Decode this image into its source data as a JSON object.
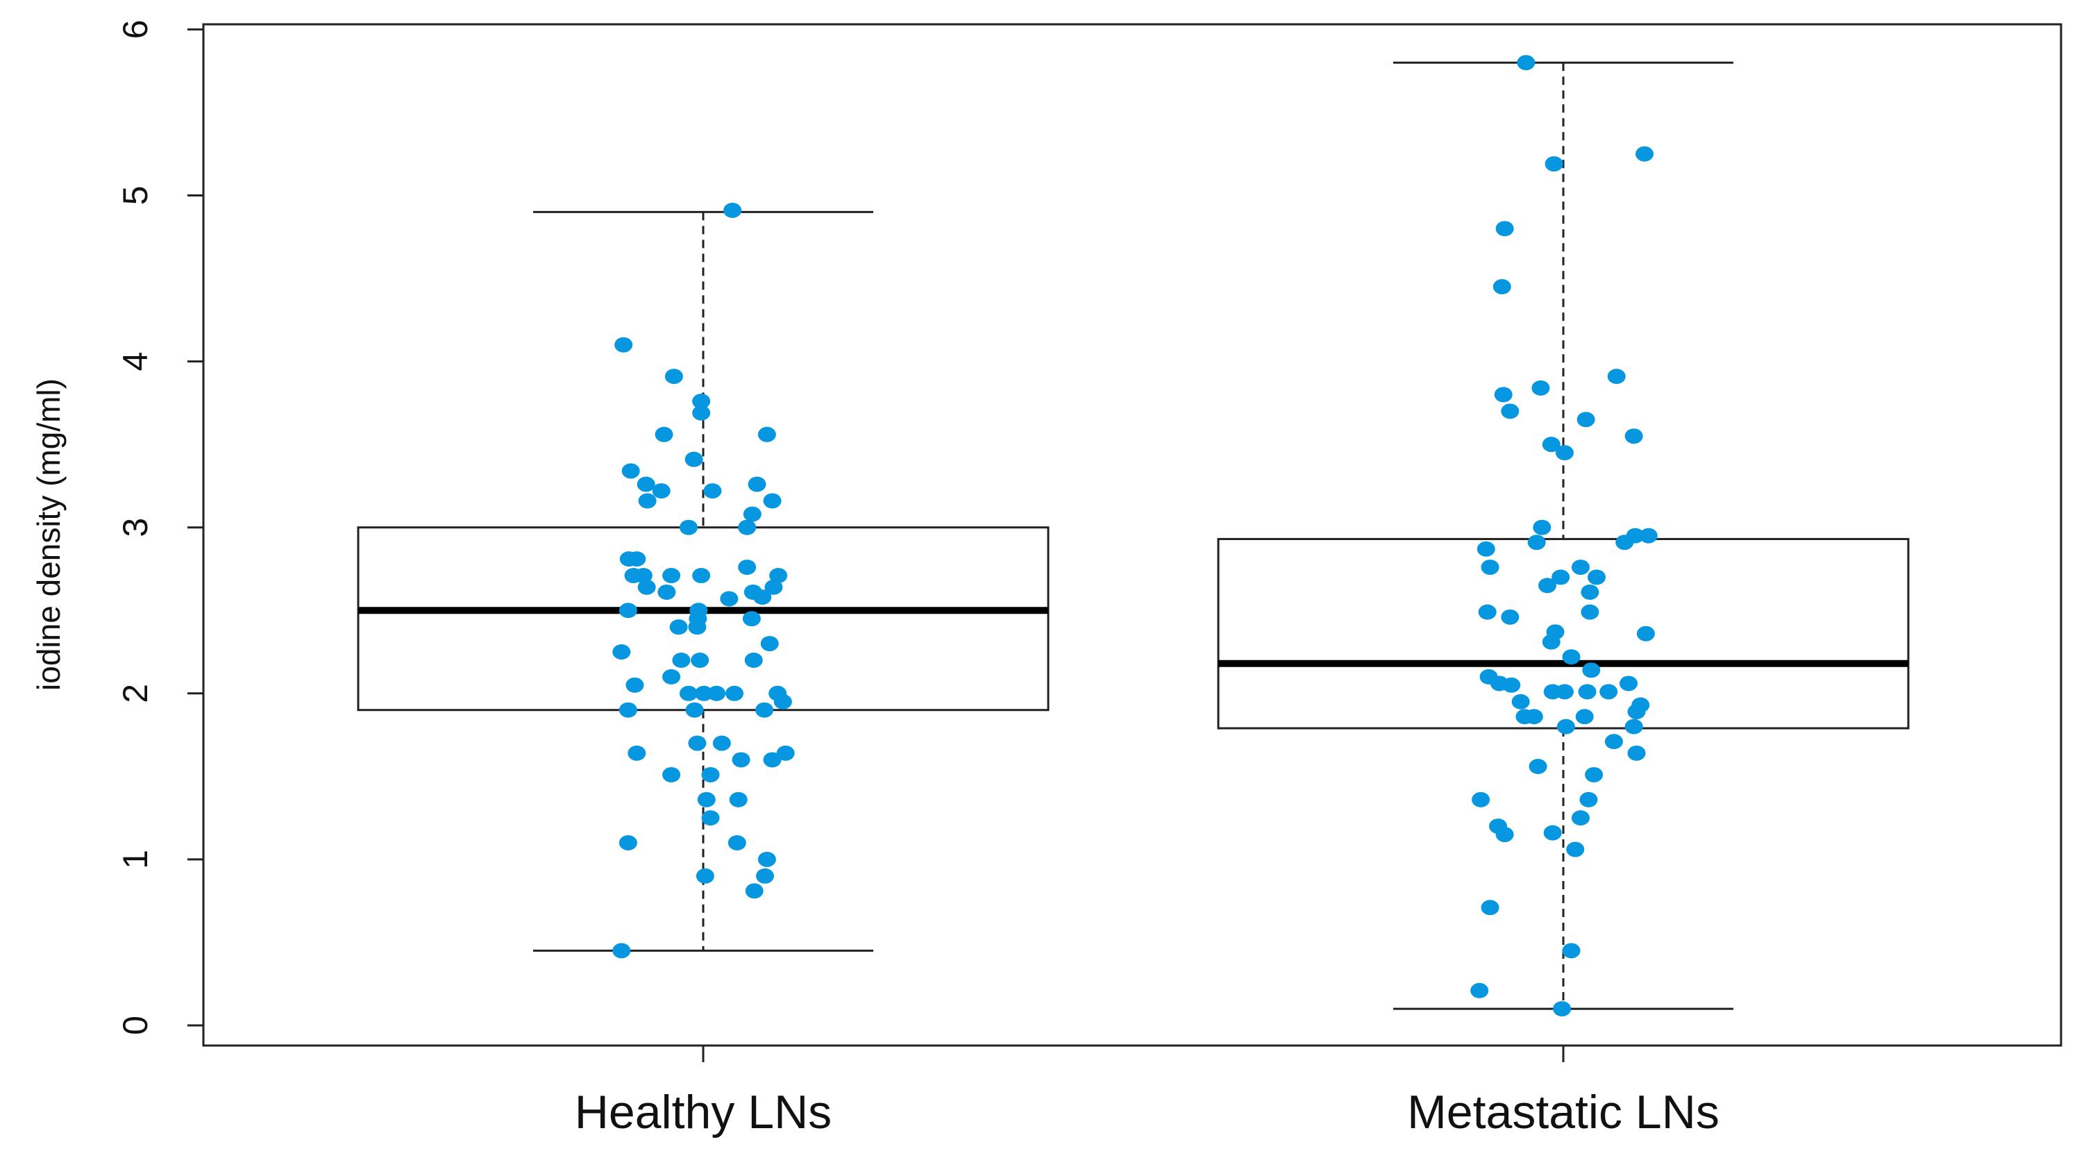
{
  "chart_data": {
    "type": "box",
    "title": "",
    "xlabel": "",
    "ylabel": "iodine density (mg/ml)",
    "ylim": [
      0,
      6
    ],
    "yticks": [
      "0",
      "1",
      "2",
      "3",
      "4",
      "5",
      "6"
    ],
    "grid": false,
    "point_color": "#0797e1",
    "categories": [
      "Healthy LNs",
      "Metastatic LNs"
    ],
    "boxes": [
      {
        "name": "Healthy LNs",
        "whisker_low": 0.45,
        "q1": 1.9,
        "median": 2.5,
        "q3": 3.0,
        "whisker_high": 4.9
      },
      {
        "name": "Metastatic LNs",
        "whisker_low": 0.1,
        "q1": 1.79,
        "median": 2.18,
        "q3": 2.93,
        "whisker_high": 5.8
      }
    ],
    "series": [
      {
        "name": "Healthy LNs",
        "values": [
          4.91,
          4.1,
          3.91,
          3.76,
          3.69,
          3.56,
          3.56,
          3.41,
          3.34,
          3.26,
          3.26,
          3.22,
          3.22,
          3.16,
          3.16,
          3.08,
          3.0,
          3.0,
          2.81,
          2.81,
          2.71,
          2.71,
          2.71,
          2.71,
          2.71,
          2.64,
          2.61,
          2.76,
          2.61,
          2.58,
          2.57,
          2.64,
          2.5,
          2.5,
          2.45,
          2.45,
          2.4,
          2.4,
          2.25,
          2.3,
          2.2,
          2.2,
          2.2,
          2.1,
          2.05,
          2.0,
          2.0,
          2.0,
          2.0,
          2.0,
          1.95,
          1.9,
          1.9,
          1.9,
          1.7,
          1.7,
          1.64,
          1.64,
          1.6,
          1.6,
          1.51,
          1.51,
          1.36,
          1.36,
          1.25,
          1.1,
          1.1,
          1.0,
          0.9,
          0.9,
          0.81,
          0.45
        ]
      },
      {
        "name": "Metastatic LNs",
        "values": [
          5.8,
          5.25,
          5.19,
          4.8,
          4.45,
          3.8,
          3.84,
          3.7,
          3.91,
          3.65,
          3.55,
          3.5,
          3.45,
          3.0,
          2.91,
          2.87,
          2.91,
          2.95,
          2.95,
          2.76,
          2.76,
          2.7,
          2.65,
          2.7,
          2.61,
          2.49,
          2.49,
          2.46,
          2.37,
          2.31,
          2.36,
          2.22,
          2.1,
          2.06,
          2.05,
          2.14,
          2.06,
          1.95,
          2.01,
          2.01,
          2.01,
          2.01,
          1.86,
          1.86,
          1.86,
          1.89,
          1.93,
          1.8,
          1.8,
          1.71,
          1.64,
          1.56,
          1.51,
          1.36,
          1.36,
          1.25,
          1.2,
          1.15,
          1.16,
          1.06,
          0.71,
          0.45,
          0.21,
          0.1
        ]
      }
    ]
  }
}
